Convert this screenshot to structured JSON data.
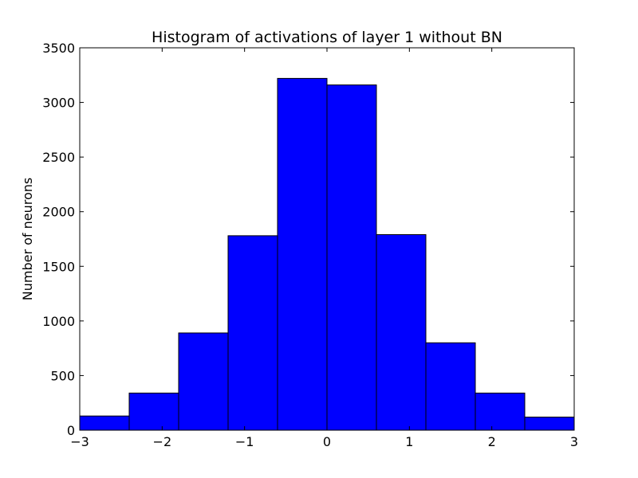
{
  "chart_data": {
    "type": "bar",
    "title": "Histogram of activations of layer 1  without BN",
    "xlabel": "",
    "ylabel": "Number of neurons",
    "xlim": [
      -3,
      3
    ],
    "ylim": [
      0,
      3500
    ],
    "bin_edges": [
      -3,
      -2.4,
      -1.8,
      -1.2,
      -0.6,
      0,
      0.6,
      1.2,
      1.8,
      2.4,
      3
    ],
    "values": [
      130,
      340,
      890,
      1780,
      3220,
      3160,
      1790,
      800,
      340,
      120
    ],
    "x_ticks": [
      -3,
      -2,
      -1,
      0,
      1,
      2,
      3
    ],
    "x_tick_labels": [
      "−3",
      "−2",
      "−1",
      "0",
      "1",
      "2",
      "3"
    ],
    "y_ticks": [
      0,
      500,
      1000,
      1500,
      2000,
      2500,
      3000,
      3500
    ],
    "y_tick_labels": [
      "0",
      "500",
      "1000",
      "1500",
      "2000",
      "2500",
      "3000",
      "3500"
    ],
    "grid": false,
    "legend": "none",
    "colors": {
      "bar_fill": "#0000ff",
      "bar_edge": "#000000",
      "axes": "#000000",
      "background": "#ffffff"
    }
  }
}
